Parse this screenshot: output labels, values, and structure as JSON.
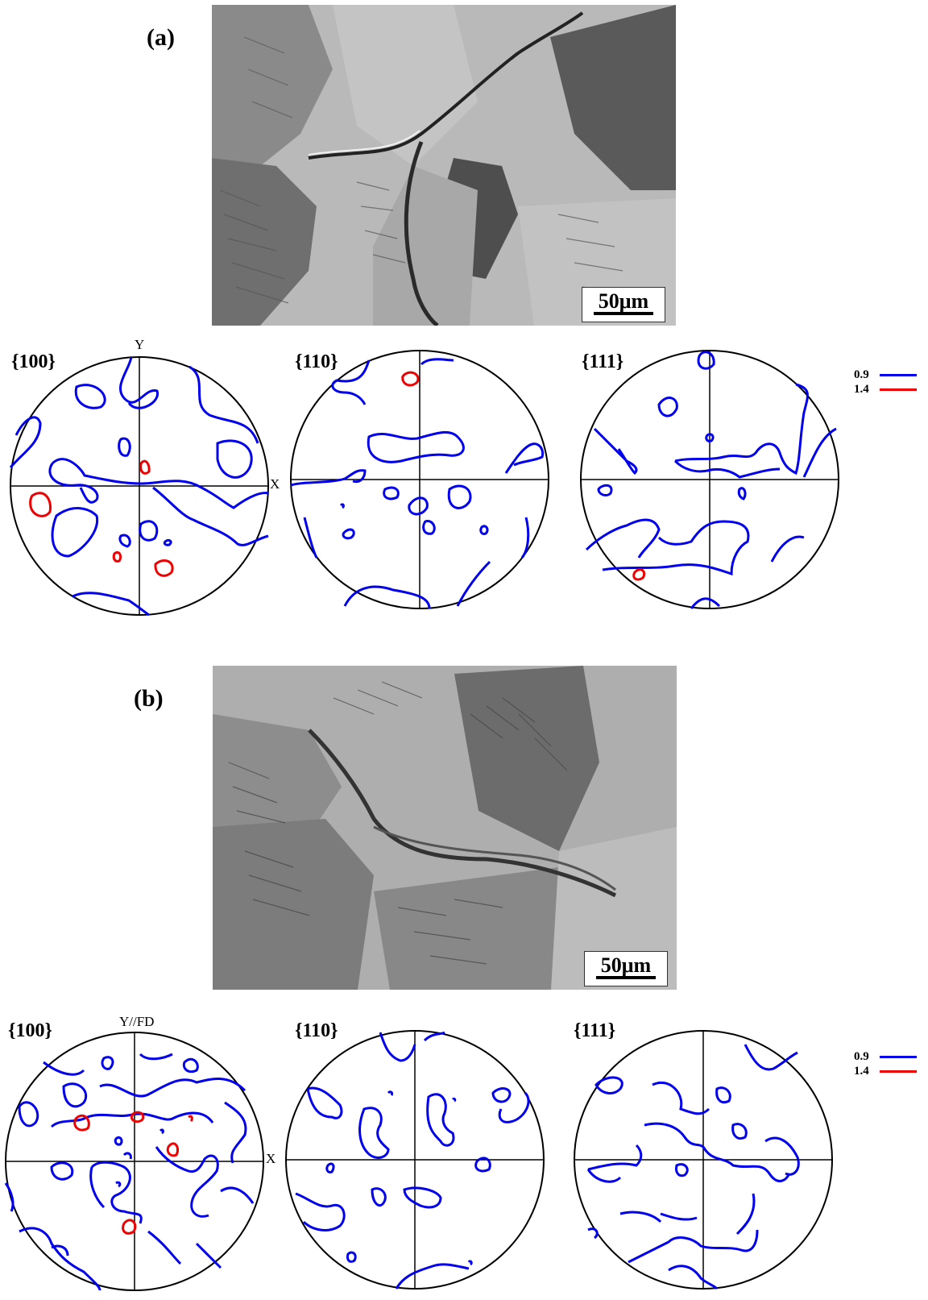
{
  "figure": {
    "panels": [
      {
        "label": "(a)",
        "scale_bar": "50μm",
        "pole_figures": [
          {
            "title": "{100}",
            "y_axis": "Y",
            "x_axis": "X"
          },
          {
            "title": "{110}"
          },
          {
            "title": "{111}"
          }
        ],
        "legend": [
          {
            "level": "0.9",
            "color": "#0000ee"
          },
          {
            "level": "1.4",
            "color": "#ee0000"
          }
        ]
      },
      {
        "label": "(b)",
        "scale_bar": "50μm",
        "pole_figures": [
          {
            "title": "{100}",
            "y_axis": "Y//FD",
            "x_axis": "X"
          },
          {
            "title": "{110}"
          },
          {
            "title": "{111}"
          }
        ],
        "legend": [
          {
            "level": "0.9",
            "color": "#0000ee"
          },
          {
            "level": "1.4",
            "color": "#ee0000"
          }
        ]
      }
    ]
  }
}
